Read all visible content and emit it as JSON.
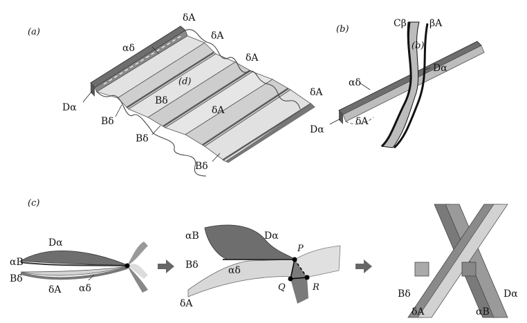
{
  "panel_a": {
    "tag": "(a)",
    "labels": {
      "alpha_delta": "αδ",
      "delta_A_1": "δA",
      "delta_A_2": "δA",
      "delta_A_3": "δA",
      "delta_A_4": "δA",
      "delta_A_5": "δA",
      "d": "(d)",
      "D_alpha": "Dα",
      "B_delta_1": "Bδ",
      "B_delta_2": "Bδ",
      "B_delta_3": "Bδ",
      "B_delta_4": "Bδ"
    }
  },
  "panel_b": {
    "tag": "(b)",
    "labels": {
      "C_beta": "Cβ",
      "beta_A": "βA",
      "b": "(b)",
      "alpha_delta": "αδ",
      "D_alpha_1": "Dα",
      "D_alpha_2": "Dα",
      "delta_A": "δA"
    }
  },
  "panel_c": {
    "tag": "(c)",
    "left": {
      "D_alpha": "Dα",
      "alpha_B": "αB",
      "B_delta": "Bδ",
      "delta_A": "δA",
      "alpha_delta": "αδ"
    },
    "middle": {
      "alpha_B": "αB",
      "D_alpha": "Dα",
      "B_delta": "Bδ",
      "alpha_delta": "αδ",
      "delta_A": "δA",
      "P": "P",
      "Q": "Q",
      "R": "R"
    },
    "right": {
      "B_delta": "Bδ",
      "delta_A": "δA",
      "alpha_B": "αB",
      "D_alpha": "Dα"
    }
  },
  "colors": {
    "dark_sheet": "#6e6e6e",
    "mid_sheet": "#9a9a9a",
    "light_sheet": "#d6d6d6",
    "edge": "#444444",
    "text": "#111111"
  }
}
